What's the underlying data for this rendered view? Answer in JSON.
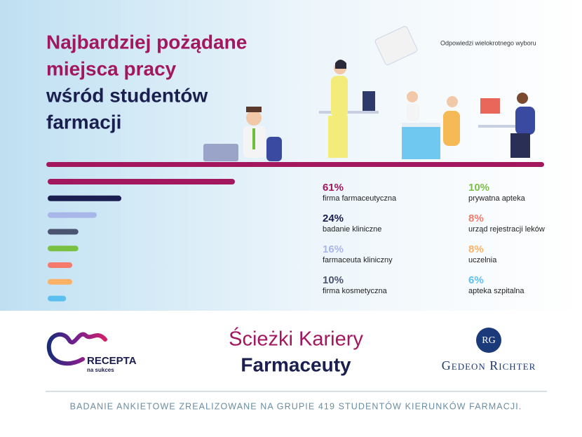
{
  "chart_data": {
    "type": "bar",
    "title_lines": [
      "Najbardziej pożądane",
      "miejsca pracy",
      "wśród studentów",
      "farmacji"
    ],
    "subtitle": "Odpowiedzi wielokrotnego wyboru",
    "categories": [
      "firma farmaceutyczna",
      "badanie kliniczne",
      "farmaceuta kliniczny",
      "firma kosmetyczna",
      "prywatna apteka",
      "urząd rejestracji leków",
      "uczelnia",
      "apteka szpitalna"
    ],
    "values": [
      61,
      24,
      16,
      10,
      10,
      8,
      8,
      6
    ],
    "value_labels": [
      "61%",
      "24%",
      "16%",
      "10%",
      "10%",
      "8%",
      "8%",
      "6%"
    ],
    "colors": [
      "#a3175f",
      "#1b1f4f",
      "#a9b6ea",
      "#4b5470",
      "#7ac143",
      "#f47b6b",
      "#fbb267",
      "#5bc0f0"
    ]
  },
  "footer": {
    "series_title": [
      "Ścieżki Kariery",
      "Farmaceuty"
    ],
    "logo_left": "RECEPTA",
    "logo_left_sub": "na sukces",
    "logo_right_mark": "RG",
    "logo_right": "Gedeon Richter",
    "note": "BADANIE ANKIETOWE ZREALIZOWANE NA GRUPIE 419 STUDENTÓW KIERUNKÓW FARMACJI."
  }
}
